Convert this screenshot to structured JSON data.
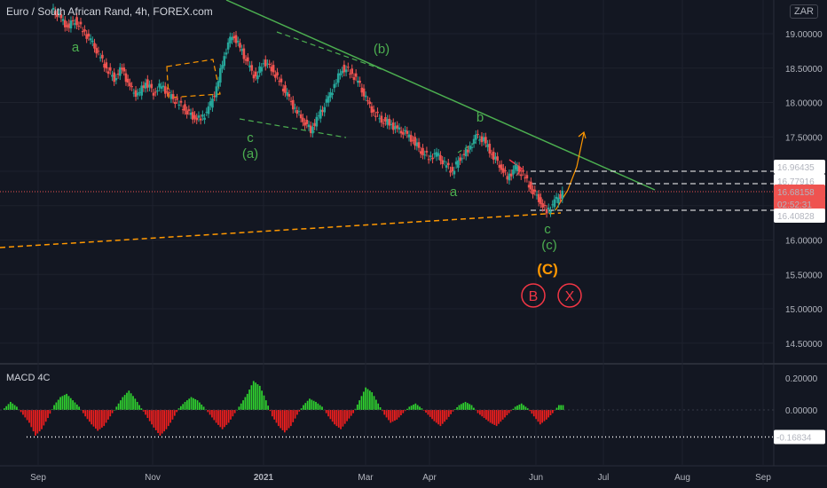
{
  "title": "Euro / South African Rand, 4h, FOREX.com",
  "currency": "ZAR",
  "indicator": {
    "name": "MACD 4C"
  },
  "colors": {
    "background": "#131722",
    "candle_up": "#26a69a",
    "candle_down": "#ef5350",
    "trendline": "#4caf50",
    "support": "#ff9800",
    "wave_green": "#4caf50",
    "wave_orange": "#ff9800",
    "wave_red": "#f23645",
    "macd_up": "#2fd02f",
    "macd_down": "#ef1e1e"
  },
  "chart_data": [
    {
      "type": "line",
      "title": "Euro / South African Rand, 4h, FOREX.com",
      "y_axis": {
        "ticks": [
          "19.00000",
          "18.50000",
          "18.00000",
          "17.50000",
          "17.00000",
          "16.50000",
          "16.00000",
          "15.50000",
          "15.00000",
          "14.50000"
        ],
        "range": [
          14.3,
          19.45
        ]
      },
      "x_axis": {
        "ticks": [
          "Sep",
          "Nov",
          "2021",
          "Mar",
          "Apr",
          "Jun",
          "Jul",
          "Aug",
          "Sep"
        ]
      },
      "series": [
        {
          "values": [
            19.35,
            19.25,
            19.1,
            19.2,
            19.05,
            18.9,
            18.7,
            18.5,
            18.35,
            18.5,
            18.2,
            18.1,
            18.3,
            18.15,
            18.25,
            18.1,
            18.0,
            17.9,
            17.8,
            17.75,
            17.9,
            18.2,
            18.7,
            19.0,
            18.8,
            18.55,
            18.35,
            18.6,
            18.5,
            18.3,
            18.1,
            17.9,
            17.75,
            17.6,
            17.8,
            18.0,
            18.25,
            18.5,
            18.45,
            18.3,
            18.05,
            17.85,
            17.75,
            17.7,
            17.6,
            17.55,
            17.45,
            17.3,
            17.2,
            17.25,
            17.1,
            17.0,
            17.2,
            17.3,
            17.5,
            17.45,
            17.25,
            17.1,
            16.9,
            17.05,
            16.95,
            16.75,
            16.6,
            16.4,
            16.55,
            16.68
          ]
        }
      ],
      "annotations": {
        "price_levels": [
          "16.96435",
          "16.77916",
          "16.68158",
          "16.40828"
        ],
        "last_price": "16.68158",
        "countdown": "02:52:31",
        "wave_labels": [
          "a",
          "c",
          "(a)",
          "(b)",
          "b",
          "a",
          "c",
          "(c)",
          "(C)",
          "B",
          "X"
        ]
      }
    },
    {
      "type": "bar",
      "title": "MACD 4C",
      "y_axis": {
        "ticks": [
          "0.20000",
          "0.00000"
        ],
        "range": [
          -0.2,
          0.24
        ]
      },
      "level_label": "-0.16834",
      "values": [
        0.01,
        0.05,
        0.02,
        -0.03,
        -0.08,
        -0.16,
        -0.12,
        -0.05,
        0.03,
        0.08,
        0.1,
        0.06,
        0.02,
        -0.04,
        -0.09,
        -0.13,
        -0.1,
        -0.04,
        0.02,
        0.08,
        0.12,
        0.07,
        0.01,
        -0.05,
        -0.11,
        -0.16,
        -0.12,
        -0.06,
        0.01,
        0.05,
        0.08,
        0.06,
        0.02,
        -0.03,
        -0.08,
        -0.12,
        -0.08,
        -0.02,
        0.04,
        0.1,
        0.18,
        0.15,
        0.06,
        -0.04,
        -0.1,
        -0.14,
        -0.1,
        -0.03,
        0.03,
        0.07,
        0.05,
        0.02,
        -0.04,
        -0.09,
        -0.12,
        -0.07,
        -0.02,
        0.06,
        0.14,
        0.11,
        0.04,
        -0.03,
        -0.08,
        -0.06,
        -0.02,
        0.02,
        0.04,
        0.01,
        -0.03,
        -0.07,
        -0.1,
        -0.06,
        -0.01,
        0.03,
        0.05,
        0.03,
        -0.02,
        -0.05,
        -0.08,
        -0.1,
        -0.06,
        -0.02,
        0.02,
        0.04,
        0.01,
        -0.04,
        -0.09,
        -0.06,
        -0.02,
        0.03
      ]
    }
  ]
}
